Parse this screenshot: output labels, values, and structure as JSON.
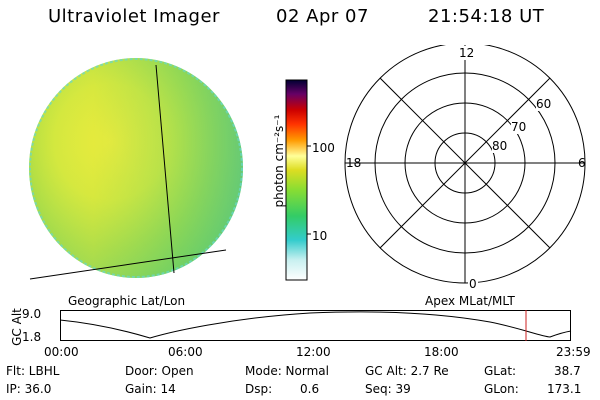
{
  "header": {
    "title": "Ultraviolet Imager",
    "date": "02 Apr 07",
    "time": "21:54:18 UT"
  },
  "image_panel": {
    "caption": "Geographic Lat/Lon"
  },
  "colorbar": {
    "unit_label": "photon cm⁻²s⁻¹",
    "ticks": [
      "100",
      "10"
    ],
    "scale": "log"
  },
  "polar_plot": {
    "caption": "Apex MLat/MLT",
    "mlt_labels": {
      "top": "12",
      "left": "18",
      "right": "6",
      "bottom": "0"
    },
    "lat_labels": [
      "60",
      "70",
      "80"
    ]
  },
  "altitude_plot": {
    "ylabel": "GC Alt",
    "y_ticks": [
      "9.0",
      "1.8"
    ],
    "time_ticks": [
      "00:00",
      "06:00",
      "12:00",
      "18:00",
      "23:59"
    ],
    "current_time_marker": "21:54",
    "marker_color": "#cc2222"
  },
  "info": {
    "flt": "Flt: LBHL",
    "ip": "IP: 36.0",
    "door": "Door: Open",
    "gain": "Gain: 14",
    "mode": "Mode: Normal",
    "dsp_label": "Dsp:",
    "dsp_value": "0.6",
    "gc_alt": "GC Alt: 2.7 Re",
    "seq": "Seq: 39",
    "glat_label": "GLat:",
    "glat_value": "38.7",
    "glon_label": "GLon:",
    "glon_value": "173.1"
  }
}
